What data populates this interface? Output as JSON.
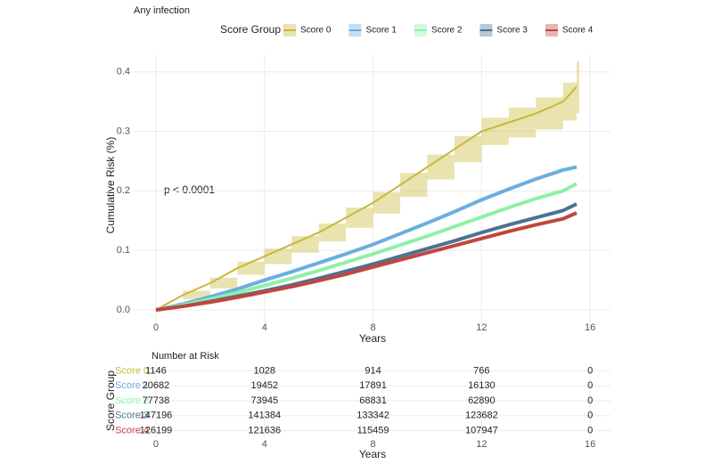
{
  "chart_data": [
    {
      "type": "line",
      "title": "Any infection",
      "legend_title": "Score Group",
      "xlabel": "Years",
      "ylabel": "Cumulative Risk (%)",
      "annotation": "p < 0.0001",
      "xlim": [
        -0.82,
        16.75
      ],
      "ylim": [
        -0.03,
        0.428
      ],
      "xticks": [
        0,
        4,
        8,
        12,
        16
      ],
      "yticks": [
        {
          "value": 0,
          "label": "0.0"
        },
        0.1,
        0.2,
        0.3,
        0.4
      ],
      "grid": true,
      "legend": "top",
      "x": [
        0,
        1,
        2,
        3,
        4,
        5,
        6,
        7,
        8,
        9,
        10,
        11,
        12,
        13,
        14,
        15,
        15.5
      ],
      "series": [
        {
          "name": "Score 0",
          "color": "#c9b83a",
          "values": [
            0,
            0.025,
            0.045,
            0.07,
            0.09,
            0.11,
            0.13,
            0.155,
            0.18,
            0.21,
            0.24,
            0.27,
            0.3,
            0.315,
            0.33,
            0.35,
            0.375
          ],
          "lower": [
            0,
            0.018,
            0.036,
            0.059,
            0.077,
            0.096,
            0.115,
            0.138,
            0.162,
            0.19,
            0.219,
            0.248,
            0.277,
            0.29,
            0.303,
            0.318,
            0.33
          ],
          "upper": [
            0,
            0.032,
            0.054,
            0.081,
            0.103,
            0.124,
            0.145,
            0.172,
            0.198,
            0.23,
            0.261,
            0.292,
            0.323,
            0.34,
            0.357,
            0.382,
            0.418
          ]
        },
        {
          "name": "Score 1",
          "color": "#6aaee0",
          "values": [
            0,
            0.01,
            0.022,
            0.035,
            0.05,
            0.064,
            0.079,
            0.094,
            0.11,
            0.128,
            0.146,
            0.165,
            0.185,
            0.203,
            0.22,
            0.235,
            0.24
          ]
        },
        {
          "name": "Score 2",
          "color": "#8ef0a8",
          "values": [
            0,
            0.008,
            0.018,
            0.029,
            0.041,
            0.053,
            0.066,
            0.08,
            0.094,
            0.109,
            0.124,
            0.14,
            0.156,
            0.172,
            0.187,
            0.2,
            0.212
          ]
        },
        {
          "name": "Score 3",
          "color": "#4a7390",
          "values": [
            0,
            0.006,
            0.014,
            0.023,
            0.032,
            0.042,
            0.053,
            0.065,
            0.077,
            0.09,
            0.103,
            0.116,
            0.13,
            0.143,
            0.155,
            0.167,
            0.178
          ]
        },
        {
          "name": "Score 4",
          "color": "#c0463e",
          "values": [
            0,
            0.006,
            0.013,
            0.021,
            0.03,
            0.039,
            0.049,
            0.06,
            0.072,
            0.084,
            0.096,
            0.108,
            0.12,
            0.132,
            0.143,
            0.153,
            0.163
          ]
        }
      ]
    },
    {
      "type": "risk_table",
      "title": "Number at Risk",
      "xlabel": "Years",
      "ylabel": "Score Group",
      "xlim": [
        -0.82,
        16.75
      ],
      "xticks": [
        0,
        4,
        8,
        12,
        16
      ],
      "rows": [
        {
          "name": "Score 0",
          "color": "#c9b83a",
          "values": [
            1146,
            1028,
            914,
            766,
            0
          ]
        },
        {
          "name": "Score 1",
          "color": "#6aaee0",
          "values": [
            20682,
            19452,
            17891,
            16130,
            0
          ]
        },
        {
          "name": "Score 2",
          "color": "#8ef0a8",
          "values": [
            77738,
            73945,
            68831,
            62890,
            0
          ]
        },
        {
          "name": "Score 3",
          "color": "#4a7390",
          "values": [
            147196,
            141384,
            133342,
            123682,
            0
          ]
        },
        {
          "name": "Score 4",
          "color": "#c0463e",
          "values": [
            126199,
            121636,
            115459,
            107947,
            0
          ]
        }
      ]
    }
  ]
}
